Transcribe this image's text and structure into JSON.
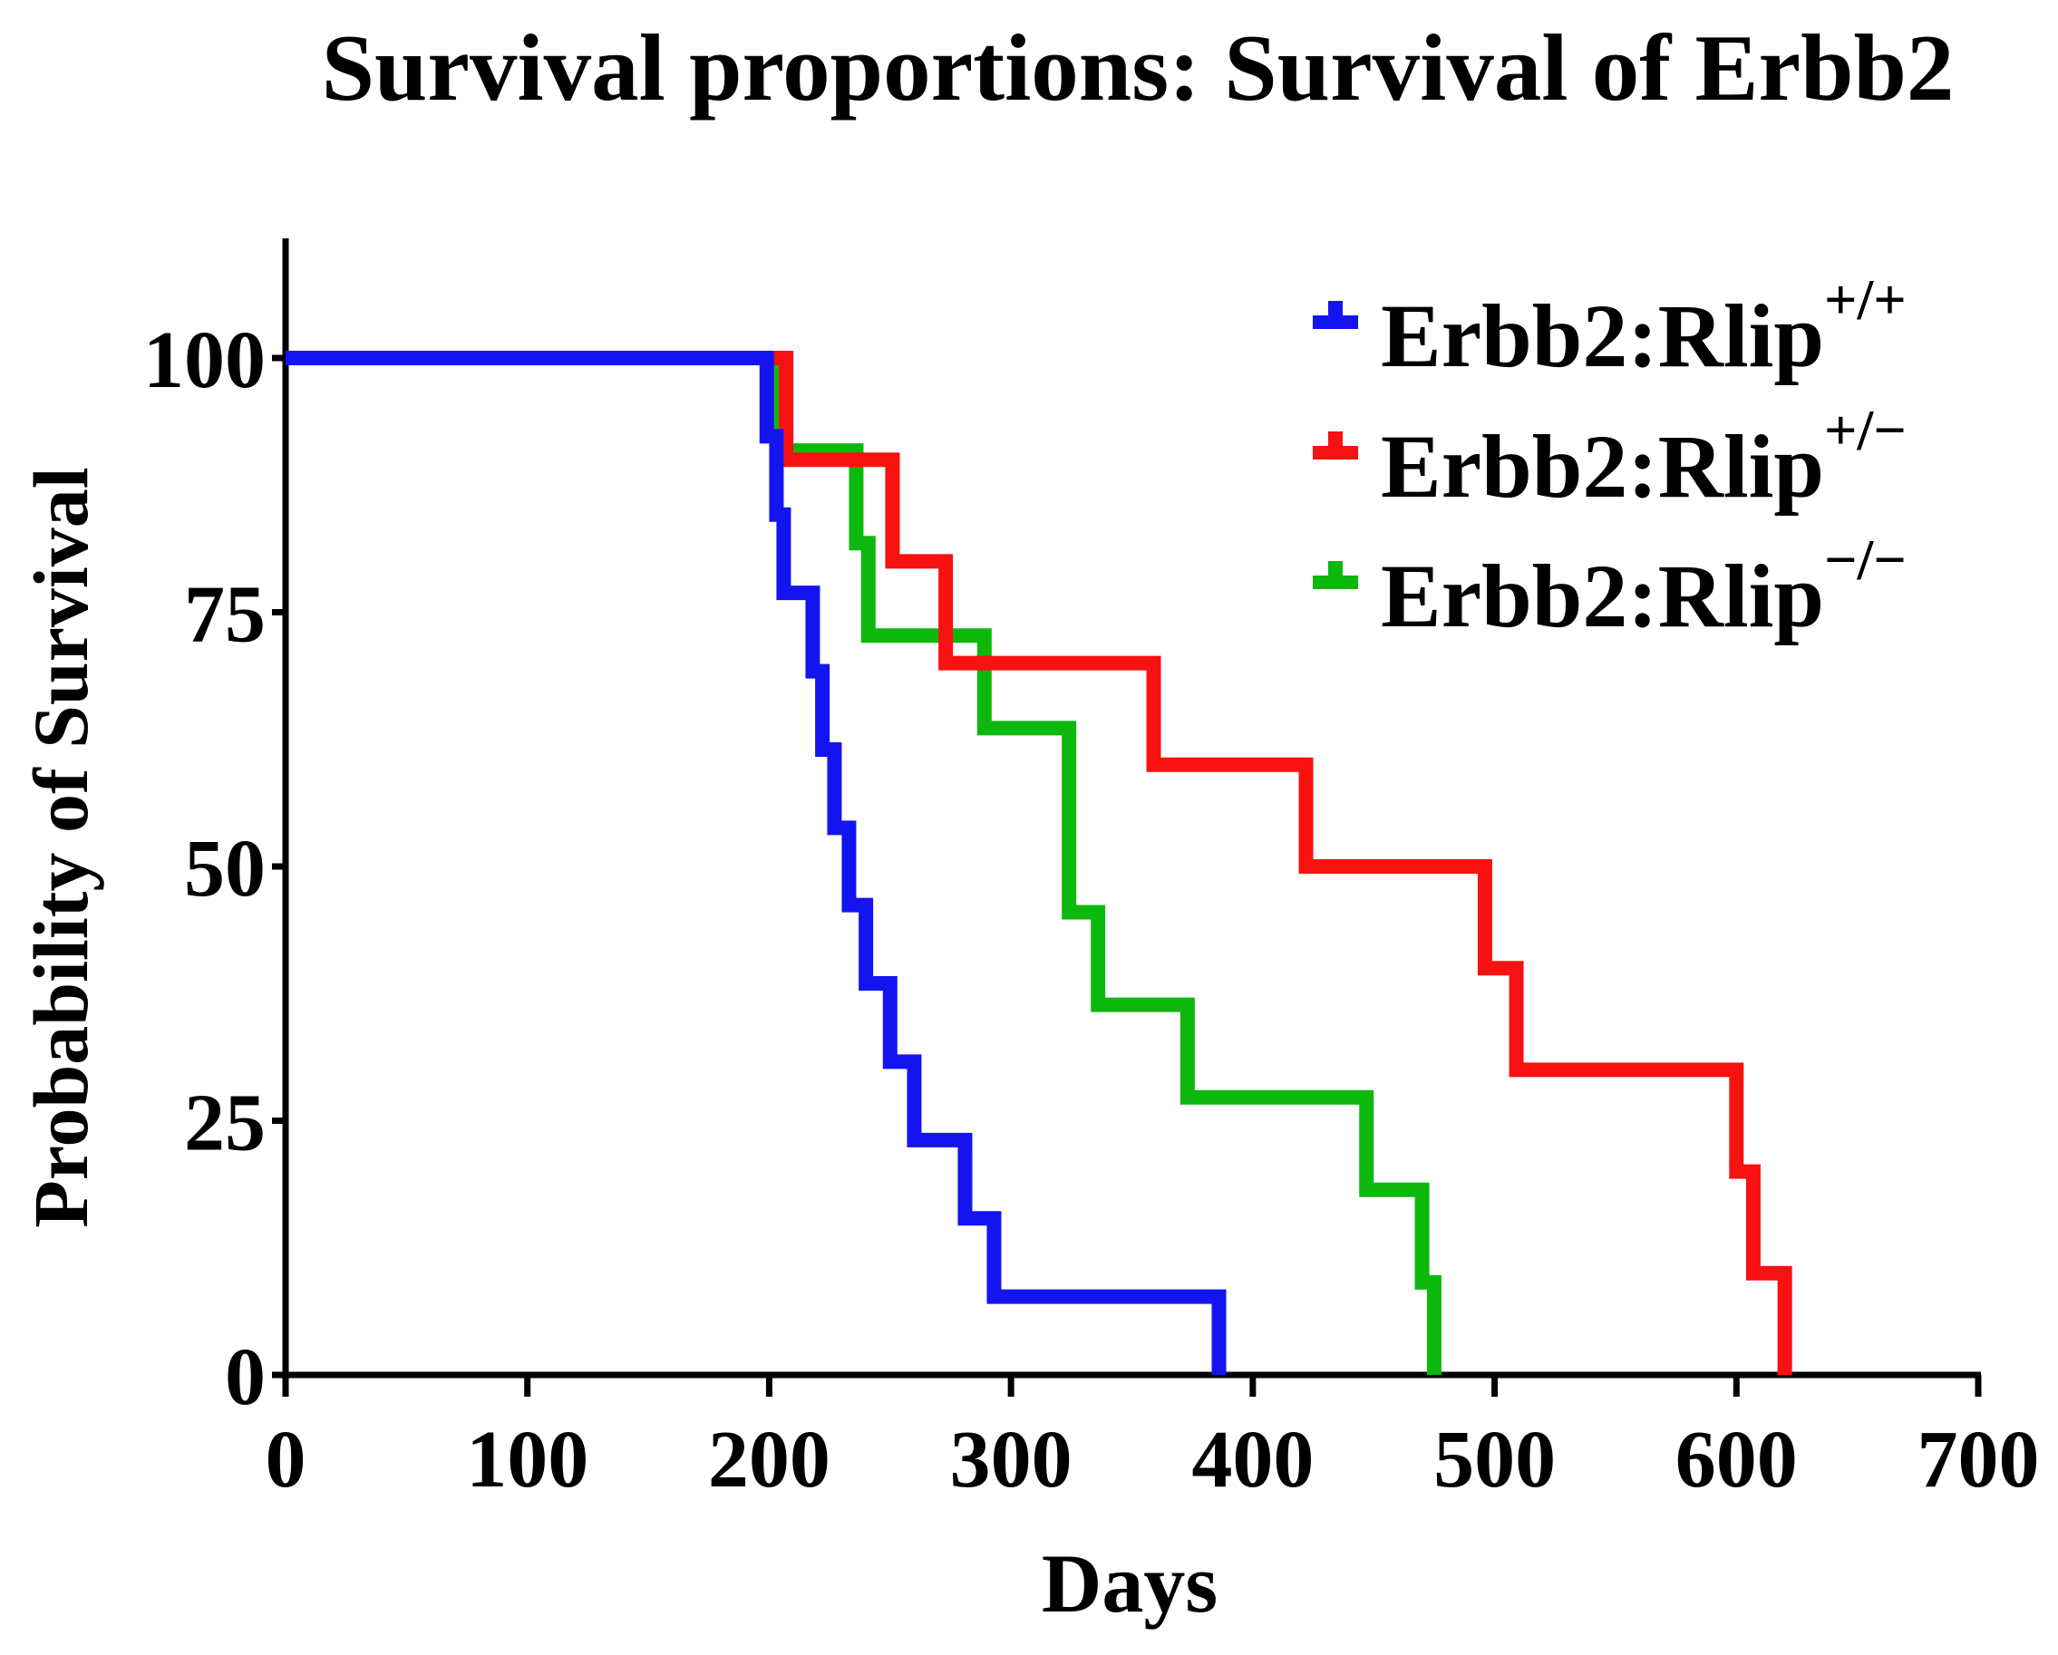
{
  "title": "Survival proportions: Survival of Erbb2",
  "axes": {
    "x": {
      "label": "Days",
      "ticks": [
        0,
        100,
        200,
        300,
        400,
        500,
        600,
        700
      ],
      "min": 0,
      "max": 700
    },
    "y": {
      "label": "Probability of Survival",
      "ticks": [
        0,
        25,
        50,
        75,
        100
      ],
      "min": 0,
      "max": 100
    }
  },
  "legend": [
    {
      "label": "Erbb2:Rlip",
      "sup": "+/+",
      "color": "#1414F0",
      "symbol": "step-glyph"
    },
    {
      "label": "Erbb2:Rlip",
      "sup": "+/−",
      "color": "#F81111",
      "symbol": "step-glyph"
    },
    {
      "label": "Erbb2:Rlip",
      "sup": "−/−",
      "color": "#0DB80D",
      "symbol": "step-glyph"
    }
  ],
  "chart_data": {
    "type": "line",
    "subtype": "kaplan-meier-step",
    "title": "Survival proportions: Survival of Erbb2",
    "xlabel": "Days",
    "ylabel": "Probability of Survival",
    "xlim": [
      0,
      700
    ],
    "ylim": [
      0,
      100
    ],
    "grid": false,
    "legend_position": "top-right",
    "series": [
      {
        "name": "Erbb2:Rlip+/+",
        "color": "#1414F0",
        "n_subjects": 13,
        "start": [
          0,
          100
        ],
        "steps": [
          [
            199,
            92.3
          ],
          [
            203,
            84.6
          ],
          [
            206,
            76.9
          ],
          [
            218,
            69.2
          ],
          [
            222,
            61.5
          ],
          [
            227,
            53.8
          ],
          [
            233,
            46.2
          ],
          [
            240,
            38.5
          ],
          [
            250,
            30.8
          ],
          [
            260,
            23.1
          ],
          [
            281,
            15.4
          ],
          [
            293,
            7.7
          ],
          [
            386,
            0
          ]
        ]
      },
      {
        "name": "Erbb2:Rlip+/−",
        "color": "#F81111",
        "n_subjects": 10,
        "start": [
          0,
          100
        ],
        "steps": [
          [
            207,
            90
          ],
          [
            251,
            80
          ],
          [
            273,
            70
          ],
          [
            359,
            60
          ],
          [
            422,
            50
          ],
          [
            496,
            40
          ],
          [
            509,
            30
          ],
          [
            600,
            20
          ],
          [
            607,
            10
          ],
          [
            620,
            0
          ]
        ]
      },
      {
        "name": "Erbb2:Rlip−/−",
        "color": "#0DB80D",
        "n_subjects": 11,
        "start": [
          0,
          100
        ],
        "steps": [
          [
            204,
            90.9
          ],
          [
            236,
            81.8
          ],
          [
            241,
            72.7
          ],
          [
            289,
            63.6
          ],
          [
            324,
            54.5
          ],
          [
            324,
            45.5
          ],
          [
            336,
            36.4
          ],
          [
            373,
            27.3
          ],
          [
            447,
            18.2
          ],
          [
            470,
            9.1
          ],
          [
            475,
            0
          ]
        ]
      }
    ]
  }
}
